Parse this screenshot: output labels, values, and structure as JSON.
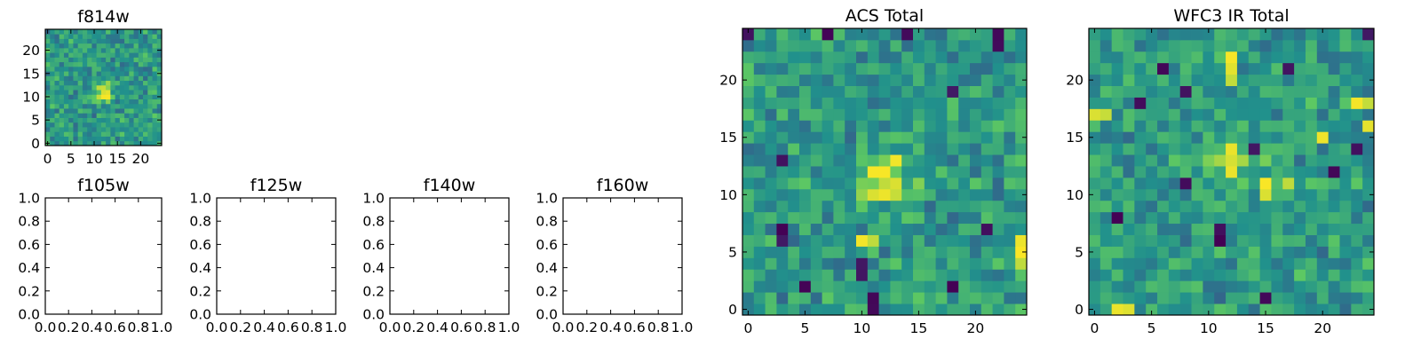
{
  "figure": {
    "background": "#ffffff"
  },
  "colormap": {
    "name": "viridis",
    "stops": [
      "#440154",
      "#3b528b",
      "#21918c",
      "#5ec962",
      "#fde725"
    ]
  },
  "chart_data": [
    {
      "id": "f814w",
      "type": "heatmap",
      "title": "f814w",
      "xticks": [
        0,
        5,
        10,
        15,
        20
      ],
      "yticks": [
        0,
        5,
        10,
        15,
        20
      ],
      "xlim": [
        -0.5,
        24.5
      ],
      "ylim": [
        -0.5,
        24.5
      ],
      "grid_size": 25,
      "source_center": [
        12,
        11
      ],
      "peak_cells": [
        [
          12,
          11
        ],
        [
          13,
          11
        ],
        [
          12,
          12
        ],
        [
          11,
          10
        ],
        [
          13,
          10
        ],
        [
          12,
          10
        ]
      ]
    },
    {
      "id": "f105w",
      "type": "table",
      "title": "f105w",
      "xticks": [
        "0.0",
        "0.2",
        "0.4",
        "0.6",
        "0.8",
        "1.0"
      ],
      "yticks": [
        "0.0",
        "0.2",
        "0.4",
        "0.6",
        "0.8",
        "1.0"
      ],
      "xlim": [
        0,
        1
      ],
      "ylim": [
        0,
        1
      ],
      "values": []
    },
    {
      "id": "f125w",
      "type": "table",
      "title": "f125w",
      "xticks": [
        "0.0",
        "0.2",
        "0.4",
        "0.6",
        "0.8",
        "1.0"
      ],
      "yticks": [
        "0.0",
        "0.2",
        "0.4",
        "0.6",
        "0.8",
        "1.0"
      ],
      "xlim": [
        0,
        1
      ],
      "ylim": [
        0,
        1
      ],
      "values": []
    },
    {
      "id": "f140w",
      "type": "table",
      "title": "f140w",
      "xticks": [
        "0.0",
        "0.2",
        "0.4",
        "0.6",
        "0.8",
        "1.0"
      ],
      "yticks": [
        "0.0",
        "0.2",
        "0.4",
        "0.6",
        "0.8",
        "1.0"
      ],
      "xlim": [
        0,
        1
      ],
      "ylim": [
        0,
        1
      ],
      "values": []
    },
    {
      "id": "f160w",
      "type": "table",
      "title": "f160w",
      "xticks": [
        "0.0",
        "0.2",
        "0.4",
        "0.6",
        "0.8",
        "1.0"
      ],
      "yticks": [
        "0.0",
        "0.2",
        "0.4",
        "0.6",
        "0.8",
        "1.0"
      ],
      "xlim": [
        0,
        1
      ],
      "ylim": [
        0,
        1
      ],
      "values": []
    },
    {
      "id": "acs-total",
      "type": "heatmap",
      "title": "ACS Total",
      "xticks": [
        0,
        5,
        10,
        15,
        20
      ],
      "yticks": [
        0,
        5,
        10,
        15,
        20
      ],
      "xlim": [
        -0.5,
        24.5
      ],
      "ylim": [
        -0.5,
        24.5
      ],
      "grid_size": 25,
      "source_center": [
        12,
        11
      ],
      "peak_cells": [
        [
          11,
          12
        ],
        [
          12,
          12
        ],
        [
          12,
          11
        ],
        [
          13,
          11
        ],
        [
          11,
          10
        ],
        [
          12,
          10
        ],
        [
          10,
          6
        ],
        [
          11,
          6
        ],
        [
          24,
          5
        ],
        [
          24,
          6
        ],
        [
          24,
          4
        ],
        [
          13,
          13
        ]
      ],
      "low_cells": [
        [
          3,
          13
        ],
        [
          3,
          6
        ],
        [
          3,
          7
        ],
        [
          10,
          3
        ],
        [
          10,
          4
        ],
        [
          11,
          0
        ],
        [
          11,
          1
        ],
        [
          21,
          7
        ],
        [
          18,
          2
        ],
        [
          22,
          23
        ],
        [
          22,
          24
        ],
        [
          0,
          24
        ],
        [
          7,
          24
        ],
        [
          14,
          24
        ],
        [
          18,
          19
        ],
        [
          5,
          2
        ]
      ]
    },
    {
      "id": "wfc3-ir-total",
      "type": "heatmap",
      "title": "WFC3 IR Total",
      "xticks": [
        0,
        5,
        10,
        15,
        20
      ],
      "yticks": [
        0,
        5,
        10,
        15,
        20
      ],
      "xlim": [
        -0.5,
        24.5
      ],
      "ylim": [
        -0.5,
        24.5
      ],
      "grid_size": 25,
      "source_center": [
        12,
        13
      ],
      "peak_cells": [
        [
          12,
          20
        ],
        [
          12,
          21
        ],
        [
          12,
          22
        ],
        [
          12,
          14
        ],
        [
          12,
          13
        ],
        [
          12,
          12
        ],
        [
          15,
          10
        ],
        [
          15,
          11
        ],
        [
          17,
          11
        ],
        [
          0,
          17
        ],
        [
          1,
          17
        ],
        [
          23,
          18
        ],
        [
          24,
          18
        ],
        [
          2,
          0
        ],
        [
          3,
          0
        ],
        [
          24,
          16
        ],
        [
          20,
          15
        ]
      ],
      "low_cells": [
        [
          8,
          19
        ],
        [
          6,
          21
        ],
        [
          17,
          21
        ],
        [
          2,
          8
        ],
        [
          8,
          11
        ],
        [
          11,
          7
        ],
        [
          11,
          6
        ],
        [
          21,
          12
        ],
        [
          23,
          14
        ],
        [
          14,
          14
        ],
        [
          15,
          1
        ],
        [
          24,
          24
        ],
        [
          4,
          18
        ]
      ]
    }
  ]
}
